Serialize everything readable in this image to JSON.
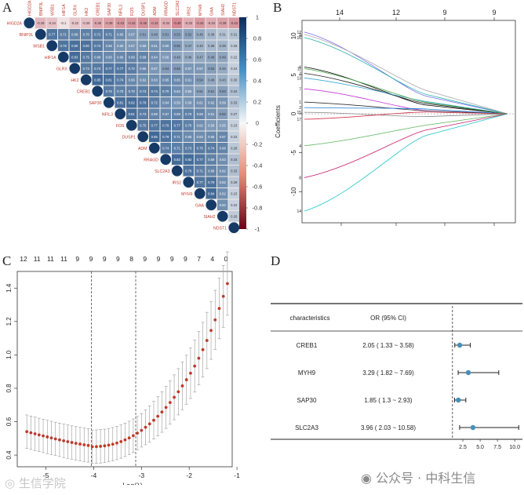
{
  "panels": {
    "a": "A",
    "b": "B",
    "c": "C",
    "d": "D"
  },
  "panel_a": {
    "genes": [
      "HIGD2A",
      "BNIP3L",
      "WSB1",
      "HIF1A",
      "GLRX",
      "HK2",
      "CREB1",
      "SAP30",
      "NFIL3",
      "FOS",
      "DUSP1",
      "ADM",
      "RRAGD",
      "SLC2A3",
      "IRS2",
      "MYH9",
      "GAA",
      "SIAH2",
      "NDST1"
    ],
    "row0_values": [
      "-0.29",
      "-0.24",
      "-0.1",
      "-0.22",
      "-0.25",
      "-0.36",
      "-0.39",
      "-0.43",
      "-0.43",
      "-0.46",
      "-0.43",
      "-0.34",
      "-0.49",
      "-0.33",
      "-0.43",
      "-0.34",
      "-0.39",
      "-0.43"
    ],
    "colorbar_ticks": [
      "1",
      "0.8",
      "0.6",
      "0.4",
      "0.2",
      "0",
      "-0.2",
      "-0.4",
      "-0.6",
      "-0.8",
      "-1"
    ]
  },
  "chart_data": [
    {
      "type": "line",
      "panel": "B",
      "top_ticks": [
        "14",
        "12",
        "9",
        "9"
      ],
      "ylabel": "Coefficients",
      "yticks": [
        "10",
        "5",
        "0",
        "-5",
        "-10"
      ],
      "ylim": [
        -14,
        12
      ],
      "series_labels_left": [
        "12",
        "16",
        "9",
        "6",
        "3",
        "13",
        "7",
        "1",
        "2",
        "15",
        "11",
        "17",
        "4",
        "8",
        "14"
      ]
    },
    {
      "type": "scatter",
      "panel": "C",
      "top_ticks": [
        "12",
        "11",
        "11",
        "11",
        "9",
        "9",
        "9",
        "9",
        "8",
        "9",
        "9",
        "9",
        "9",
        "7",
        "4",
        "0"
      ],
      "xlabel": "Log(λ)",
      "xticks": [
        "-5",
        "-4",
        "-3",
        "-2",
        "-1"
      ],
      "yticks": [
        "0.4",
        "0.6",
        "0.8",
        "1.0",
        "1.2",
        "1.4"
      ],
      "xlim": [
        -5.6,
        -1.1
      ],
      "ylim": [
        0.33,
        1.5
      ],
      "vlines": [
        -4.05,
        -3.12
      ],
      "x_start": -5.4,
      "x_end": -1.2,
      "n_points": 50
    },
    {
      "type": "table",
      "panel": "D",
      "headers": [
        "characteristics",
        "OR (95% CI)"
      ],
      "rows": [
        {
          "name": "CREB1",
          "or_text": "2.05 ( 1.33 ~ 3.58)",
          "or": 2.05,
          "lo": 1.33,
          "hi": 3.58
        },
        {
          "name": "MYH9",
          "or_text": "3.29 ( 1.82 ~ 7.69)",
          "or": 3.29,
          "lo": 1.82,
          "hi": 7.69
        },
        {
          "name": "SAP30",
          "or_text": "1.85 ( 1.3 ~ 2.93)",
          "or": 1.85,
          "lo": 1.3,
          "hi": 2.93
        },
        {
          "name": "SLC2A3",
          "or_text": "3.96 ( 2.03 ~ 10.58)",
          "or": 3.96,
          "lo": 2.03,
          "hi": 10.58
        }
      ],
      "xticks": [
        "2.5",
        "5.0",
        "7.5",
        "10.0"
      ],
      "xlim": [
        0,
        11
      ],
      "ref_line": 1
    }
  ],
  "watermarks": {
    "left": "生信学院",
    "right": "公众号 · 中科生信"
  },
  "colors": {
    "pos": "#1f4f85",
    "neg": "#b2182b",
    "dot": "#c0392b",
    "forest": "#4a8fb7"
  }
}
